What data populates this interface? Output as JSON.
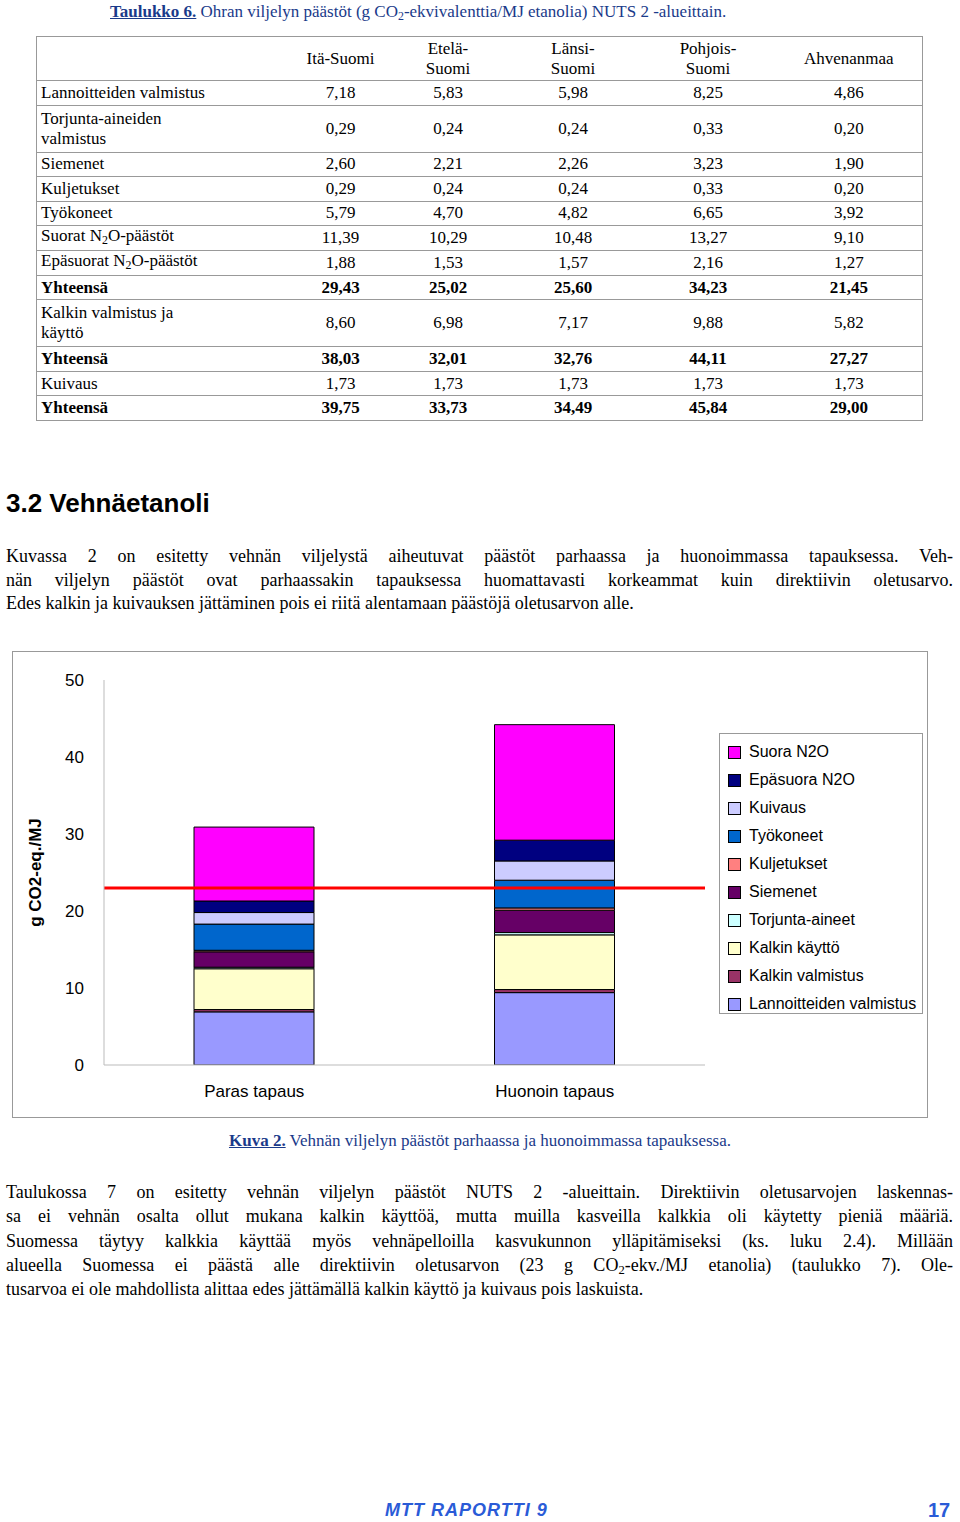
{
  "table_caption": {
    "label": "Taulukko 6.",
    "text": "Ohran viljelyn päästöt (g CO2-ekvivalenttia/MJ etanolia) NUTS 2 -alueittain."
  },
  "table": {
    "header": [
      [
        "Itä-Suomi"
      ],
      [
        "Etelä-",
        "Suomi"
      ],
      [
        "Länsi-",
        "Suomi"
      ],
      [
        "Pohjois-",
        "Suomi"
      ],
      [
        "Ahvenanmaa"
      ]
    ],
    "rows": [
      {
        "label": [
          "Lannoitteiden valmistus"
        ],
        "values": [
          "7,18",
          "5,83",
          "5,98",
          "8,25",
          "4,86"
        ],
        "total": false
      },
      {
        "label": [
          "Torjunta-aineiden",
          "valmistus"
        ],
        "values": [
          "0,29",
          "0,24",
          "0,24",
          "0,33",
          "0,20"
        ],
        "total": false
      },
      {
        "label": [
          "Siemenet"
        ],
        "values": [
          "2,60",
          "2,21",
          "2,26",
          "3,23",
          "1,90"
        ],
        "total": false
      },
      {
        "label": [
          "Kuljetukset"
        ],
        "values": [
          "0,29",
          "0,24",
          "0,24",
          "0,33",
          "0,20"
        ],
        "total": false
      },
      {
        "label": [
          "Työkoneet"
        ],
        "values": [
          "5,79",
          "4,70",
          "4,82",
          "6,65",
          "3,92"
        ],
        "total": false
      },
      {
        "label": [
          "Suorat N2O-päästöt"
        ],
        "values": [
          "11,39",
          "10,29",
          "10,48",
          "13,27",
          "9,10"
        ],
        "total": false
      },
      {
        "label": [
          "Epäsuorat N2O-päästöt"
        ],
        "values": [
          "1,88",
          "1,53",
          "1,57",
          "2,16",
          "1,27"
        ],
        "total": false
      },
      {
        "label": [
          "Yhteensä"
        ],
        "values": [
          "29,43",
          "25,02",
          "25,60",
          "34,23",
          "21,45"
        ],
        "total": true
      },
      {
        "label": [
          "Kalkin valmistus ja",
          "käyttö"
        ],
        "values": [
          "8,60",
          "6,98",
          "7,17",
          "9,88",
          "5,82"
        ],
        "total": false
      },
      {
        "label": [
          "Yhteensä"
        ],
        "values": [
          "38,03",
          "32,01",
          "32,76",
          "44,11",
          "27,27"
        ],
        "total": true
      },
      {
        "label": [
          "Kuivaus"
        ],
        "values": [
          "1,73",
          "1,73",
          "1,73",
          "1,73",
          "1,73"
        ],
        "total": false
      },
      {
        "label": [
          "Yhteensä"
        ],
        "values": [
          "39,75",
          "33,73",
          "34,49",
          "45,84",
          "29,00"
        ],
        "total": true
      }
    ]
  },
  "section_heading": "3.2 Vehnäetanoli",
  "paragraph_1": [
    "Kuvassa 2 on esitetty vehnän viljelystä aiheutuvat päästöt parhaassa ja huonoimmassa tapauksessa. Veh-",
    "nän viljelyn päästöt ovat parhaassakin tapauksessa huomattavasti korkeammat kuin direktiivin oletusarvo.",
    "Edes kalkin ja kuivauksen jättäminen pois ei riitä alentamaan päästöjä oletusarvon alle."
  ],
  "chart_data": {
    "type": "bar",
    "stacked": true,
    "y_label": "g CO2-eq./MJ",
    "categories": [
      "Paras tapaus",
      "Huonoin tapaus"
    ],
    "ylim": [
      0,
      50
    ],
    "yticks": [
      0,
      10,
      20,
      30,
      40,
      50
    ],
    "grid": false,
    "legend": "right",
    "reference_line": {
      "value": 23,
      "color": "#ff0000"
    },
    "series": [
      {
        "name": "Lannoitteiden valmistus",
        "color": "#9999ff",
        "values": [
          6.9,
          9.4
        ]
      },
      {
        "name": "Kalkin valmistus",
        "color": "#993366",
        "values": [
          0.3,
          0.4
        ]
      },
      {
        "name": "Kalkin käyttö",
        "color": "#ffffcc",
        "values": [
          5.3,
          7.1
        ]
      },
      {
        "name": "Torjunta-aineet",
        "color": "#ccffff",
        "values": [
          0.2,
          0.3
        ]
      },
      {
        "name": "Siemenet",
        "color": "#660066",
        "values": [
          2.0,
          2.9
        ]
      },
      {
        "name": "Kuljetukset",
        "color": "#ff8080",
        "values": [
          0.2,
          0.3
        ]
      },
      {
        "name": "Työkoneet",
        "color": "#0066cc",
        "values": [
          3.4,
          3.6
        ]
      },
      {
        "name": "Kuivaus",
        "color": "#ccccff",
        "values": [
          1.5,
          2.5
        ]
      },
      {
        "name": "Epäsuora N2O",
        "color": "#000080",
        "values": [
          1.5,
          2.7
        ]
      },
      {
        "name": "Suora N2O",
        "color": "#ff00ff",
        "values": [
          9.6,
          15.0
        ]
      }
    ]
  },
  "figure_caption": {
    "label": "Kuva 2.",
    "text": "Vehnän viljelyn päästöt parhaassa ja huonoimmassa tapauksessa."
  },
  "paragraph_2": [
    "Taulukossa 7 on esitetty vehnän viljelyn päästöt NUTS 2 -alueittain. Direktiivin oletusarvojen laskennas-",
    "sa ei vehnän osalta ollut mukana kalkin käyttöä, mutta muilla kasveilla kalkkia oli käytetty pieniä määriä.",
    "Suomessa täytyy kalkkia käyttää myös vehnäpelloilla kasvukunnon ylläpitämiseksi (ks. luku 2.4). Millään",
    "alueella Suomessa ei päästä alle direktiivin oletusarvon (23 g CO2-ekv./MJ etanolia) (taulukko 7). Ole-",
    "tusarvoa ei ole mahdollista alittaa edes jättämällä kalkin käyttö ja kuivaus pois laskuista."
  ],
  "footer": {
    "report": "MTT RAPORTTI 9",
    "page": "17"
  }
}
